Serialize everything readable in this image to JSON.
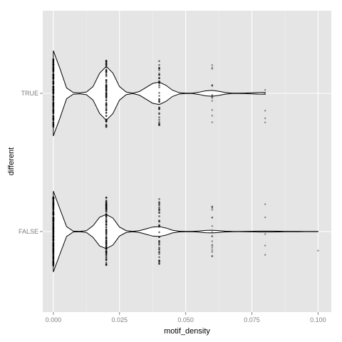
{
  "chart_data": {
    "type": "violin",
    "orientation": "horizontal",
    "title": "",
    "xlabel": "motif_density",
    "ylabel": "different",
    "xlim": [
      -0.004,
      0.105
    ],
    "x_ticks": [
      0,
      0.025,
      0.05,
      0.075,
      0.1
    ],
    "x_tick_labels": [
      "0.000",
      "0.025",
      "0.050",
      "0.075",
      "0.100"
    ],
    "categories": [
      "FALSE",
      "TRUE"
    ],
    "grid": true,
    "legend": "none",
    "colors": {
      "panel_background": "#e5e5e5",
      "grid_major": "#ffffff",
      "grid_minor": "#f2f2f2",
      "violin_fill": "#ffffff",
      "violin_outline": "#000000",
      "points": "#000000"
    },
    "series": [
      {
        "category": "TRUE",
        "density_profile": [
          [
            0.0,
            0.95
          ],
          [
            0.0025,
            0.55
          ],
          [
            0.005,
            0.12
          ],
          [
            0.0075,
            0.02
          ],
          [
            0.01,
            0.01
          ],
          [
            0.0125,
            0.03
          ],
          [
            0.015,
            0.15
          ],
          [
            0.0175,
            0.45
          ],
          [
            0.02,
            0.6
          ],
          [
            0.0225,
            0.45
          ],
          [
            0.025,
            0.15
          ],
          [
            0.0275,
            0.03
          ],
          [
            0.03,
            0.005
          ],
          [
            0.0325,
            0.04
          ],
          [
            0.035,
            0.13
          ],
          [
            0.0375,
            0.22
          ],
          [
            0.04,
            0.25
          ],
          [
            0.0425,
            0.18
          ],
          [
            0.045,
            0.07
          ],
          [
            0.0475,
            0.015
          ],
          [
            0.05,
            0.003
          ],
          [
            0.0525,
            0.005
          ],
          [
            0.055,
            0.025
          ],
          [
            0.0575,
            0.055
          ],
          [
            0.06,
            0.065
          ],
          [
            0.0625,
            0.045
          ],
          [
            0.065,
            0.018
          ],
          [
            0.0675,
            0.005
          ],
          [
            0.07,
            0.003
          ],
          [
            0.0725,
            0.006
          ],
          [
            0.075,
            0.012
          ],
          [
            0.0775,
            0.018
          ],
          [
            0.08,
            0.02
          ]
        ],
        "points": {
          "values": [
            0,
            0.02,
            0.04,
            0.06,
            0.08
          ],
          "approx_counts": [
            150,
            90,
            40,
            14,
            4
          ]
        }
      },
      {
        "category": "FALSE",
        "density_profile": [
          [
            0.0,
            0.9
          ],
          [
            0.0025,
            0.5
          ],
          [
            0.005,
            0.11
          ],
          [
            0.0075,
            0.01
          ],
          [
            0.01,
            0.004
          ],
          [
            0.0125,
            0.02
          ],
          [
            0.015,
            0.13
          ],
          [
            0.0175,
            0.32
          ],
          [
            0.02,
            0.38
          ],
          [
            0.0225,
            0.3
          ],
          [
            0.025,
            0.1
          ],
          [
            0.0275,
            0.02
          ],
          [
            0.03,
            0.004
          ],
          [
            0.0325,
            0.02
          ],
          [
            0.035,
            0.06
          ],
          [
            0.0375,
            0.1
          ],
          [
            0.04,
            0.11
          ],
          [
            0.0425,
            0.08
          ],
          [
            0.045,
            0.03
          ],
          [
            0.0475,
            0.008
          ],
          [
            0.05,
            0.003
          ],
          [
            0.0525,
            0.004
          ],
          [
            0.055,
            0.012
          ],
          [
            0.0575,
            0.025
          ],
          [
            0.06,
            0.03
          ],
          [
            0.0625,
            0.02
          ],
          [
            0.065,
            0.008
          ],
          [
            0.0675,
            0.003
          ],
          [
            0.07,
            0.002
          ],
          [
            0.0725,
            0.003
          ],
          [
            0.075,
            0.006
          ],
          [
            0.0775,
            0.009
          ],
          [
            0.08,
            0.01
          ],
          [
            0.0825,
            0.009
          ],
          [
            0.085,
            0.007
          ],
          [
            0.0875,
            0.005
          ],
          [
            0.09,
            0.004
          ],
          [
            0.0925,
            0.003
          ],
          [
            0.095,
            0.002
          ],
          [
            0.0975,
            0.002
          ],
          [
            0.1,
            0.002
          ]
        ],
        "points": {
          "values": [
            0,
            0.02,
            0.04,
            0.06,
            0.08,
            0.1
          ],
          "approx_counts": [
            220,
            110,
            40,
            18,
            5,
            1
          ]
        }
      }
    ]
  }
}
